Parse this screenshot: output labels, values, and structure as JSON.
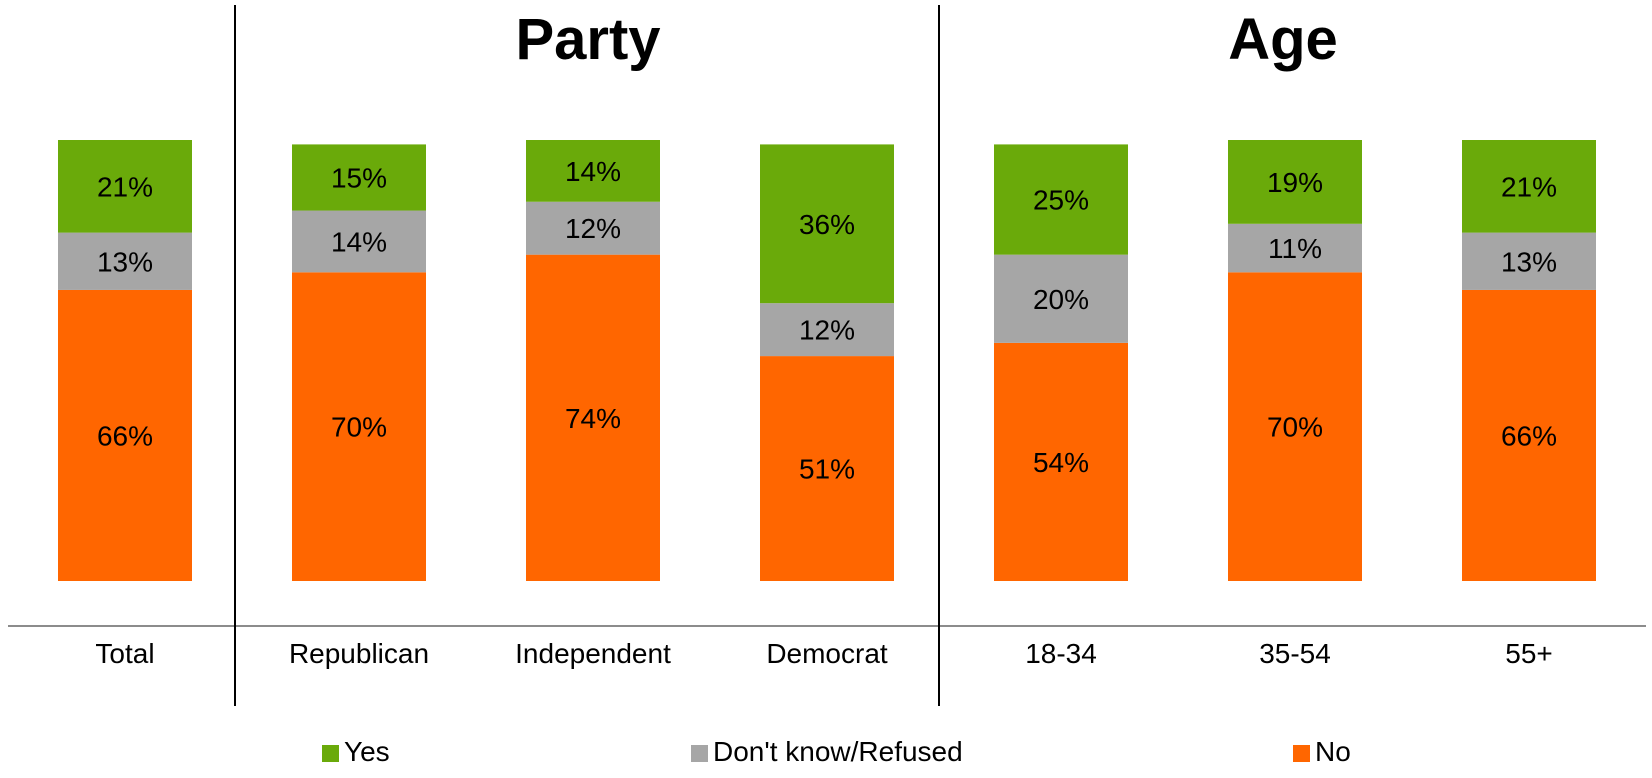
{
  "chart_data": {
    "type": "bar",
    "stacked": true,
    "groups": [
      {
        "title": "",
        "categories": [
          "Total"
        ]
      },
      {
        "title": "Party",
        "categories": [
          "Republican",
          "Independent",
          "Democrat"
        ]
      },
      {
        "title": "Age",
        "categories": [
          "18-34",
          "35-54",
          "55+"
        ]
      }
    ],
    "categories": [
      "Total",
      "Republican",
      "Independent",
      "Democrat",
      "18-34",
      "35-54",
      "55+"
    ],
    "series": [
      {
        "name": "No",
        "color": "#ff6600",
        "values": [
          66,
          70,
          74,
          51,
          54,
          70,
          66
        ],
        "labels": [
          "66%",
          "70%",
          "74%",
          "51%",
          "54%",
          "70%",
          "66%"
        ]
      },
      {
        "name": "Don't know/Refused",
        "color": "#a6a6a6",
        "values": [
          13,
          14,
          12,
          12,
          20,
          11,
          13
        ],
        "labels": [
          "13%",
          "14%",
          "12%",
          "12%",
          "20%",
          "11%",
          "13%"
        ]
      },
      {
        "name": "Yes",
        "color": "#6aaa0a",
        "values": [
          21,
          15,
          14,
          36,
          25,
          19,
          21
        ],
        "labels": [
          "21%",
          "15%",
          "14%",
          "36%",
          "25%",
          "19%",
          "21%"
        ]
      }
    ],
    "legend_order": [
      "Yes",
      "Don't know/Refused",
      "No"
    ],
    "legend_position": "bottom",
    "ylim": [
      0,
      100
    ],
    "grid": false
  }
}
